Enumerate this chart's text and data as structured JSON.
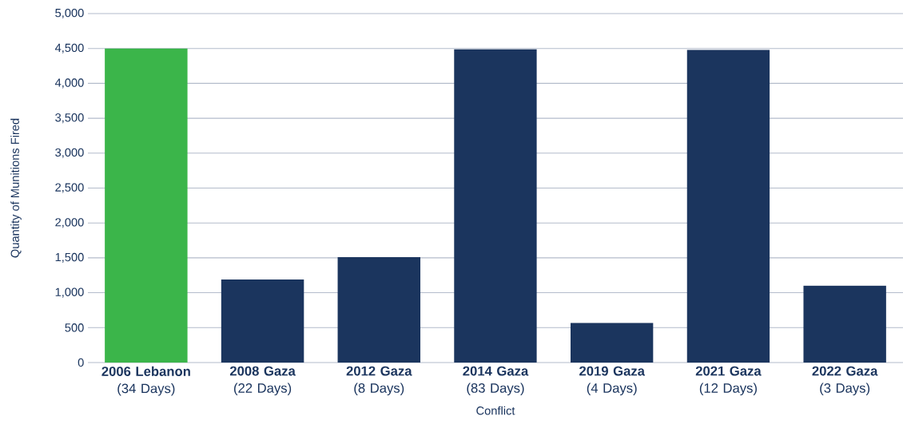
{
  "chart_data": {
    "type": "bar",
    "ylabel": "Quantity of Munitions Fired",
    "xlabel": "Conflict",
    "categories": [
      "**2006 Lebanon** (34 Days)",
      "**2008 Gaza** (22 Days)",
      "**2012 Gaza** (8 Days)",
      "**2014 Gaza** (83 Days)",
      "**2019 Gaza** (4 Days)",
      "**2021 Gaza** (12 Days)",
      "**2022 Gaza** (3 Days)"
    ],
    "values": [
      4500,
      1190,
      1510,
      4490,
      570,
      4480,
      1100
    ],
    "colors": [
      "#3bb54a",
      "#1b355e",
      "#1b355e",
      "#1b355e",
      "#1b355e",
      "#1b355e",
      "#1b355e"
    ],
    "ylim": [
      0,
      5000
    ],
    "yticks": [
      0,
      500,
      {
        "value": 1000,
        "label": "1,000"
      },
      {
        "value": 1500,
        "label": "1,500"
      },
      {
        "value": 2000,
        "label": "2,000"
      },
      {
        "value": 2500,
        "label": "2,500"
      },
      {
        "value": 3000,
        "label": "3,000"
      },
      {
        "value": 3500,
        "label": "3,500"
      },
      {
        "value": 4000,
        "label": "4,000"
      },
      {
        "value": 4500,
        "label": "4,500"
      },
      {
        "value": 5000,
        "label": "5,000"
      }
    ],
    "grid": "y"
  }
}
